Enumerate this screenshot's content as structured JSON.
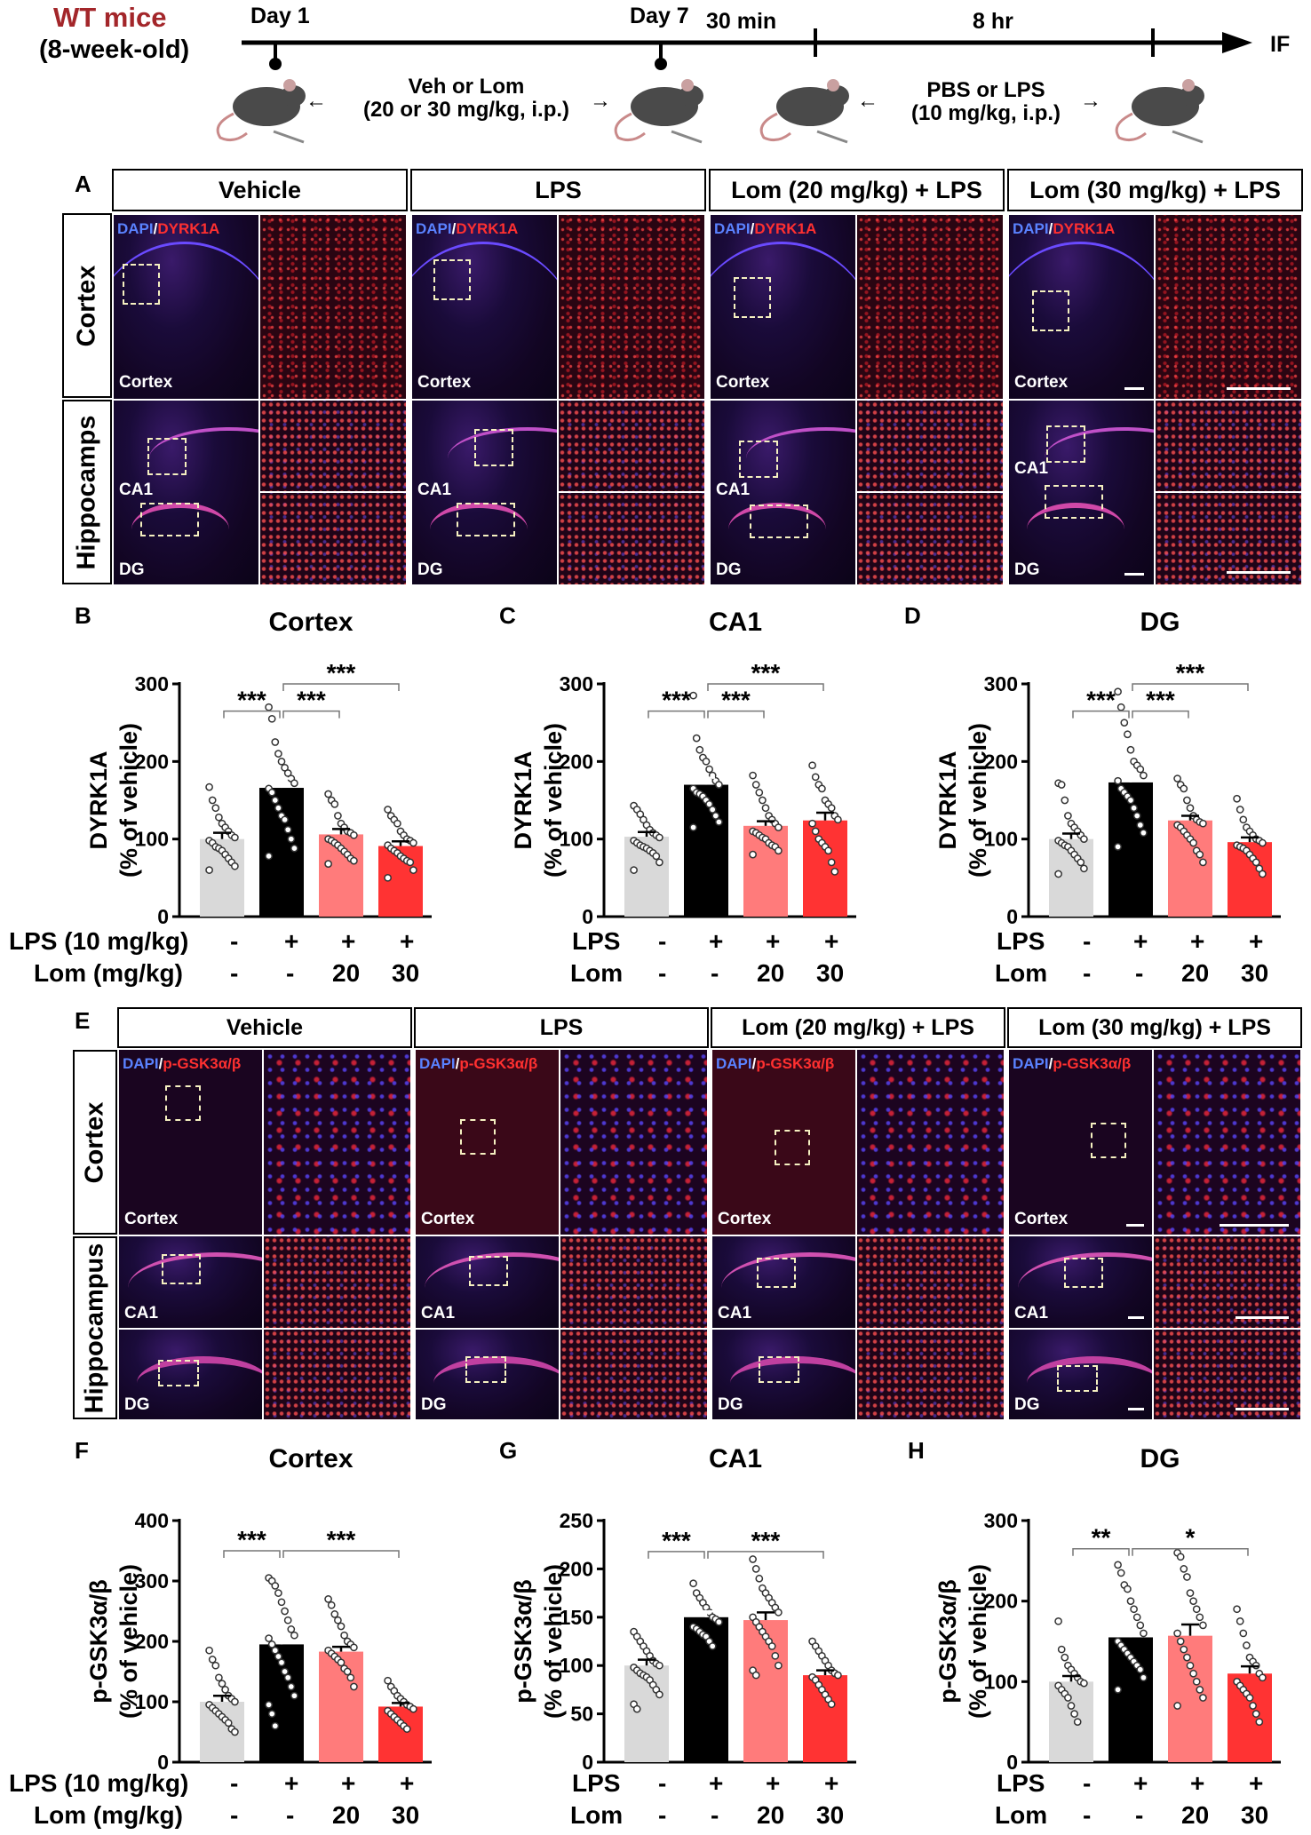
{
  "timeline": {
    "mice_title": "WT mice",
    "mice_sub": "(8-week-old)",
    "day1": "Day 1",
    "day7": "Day 7",
    "t30": "30 min",
    "t8": "8 hr",
    "end": "IF",
    "arrow1_l1": "Veh or Lom",
    "arrow1_l2": "(20 or 30 mg/kg, i.p.)",
    "arrow2_l1": "PBS or LPS",
    "arrow2_l2": "(10 mg/kg, i.p.)"
  },
  "panels": {
    "A": "A",
    "B": "B",
    "C": "C",
    "D": "D",
    "E": "E",
    "F": "F",
    "G": "G",
    "H": "H"
  },
  "groups": [
    "Vehicle",
    "LPS",
    "Lom (20 mg/kg) + LPS",
    "Lom (30 mg/kg) + LPS"
  ],
  "rows_A": {
    "cortex": "Cortex",
    "hippo": "Hippocamps"
  },
  "rows_E": {
    "cortex": "Cortex",
    "hippo": "Hippocampus"
  },
  "region_labels": {
    "cortex": "Cortex",
    "ca1": "CA1",
    "dg": "DG"
  },
  "stain_A": {
    "dapi": "DAPI",
    "sep": "/",
    "marker": "DYRK1A"
  },
  "stain_E": {
    "dapi": "DAPI",
    "sep": "/",
    "marker": "p-GSK3α/β"
  },
  "treatments_full": {
    "lps_label": "LPS (10 mg/kg)",
    "lom_label": "Lom (mg/kg)",
    "lps": [
      "-",
      "+",
      "+",
      "+"
    ],
    "lom": [
      "-",
      "-",
      "20",
      "30"
    ]
  },
  "treatments_short": {
    "lps_label": "LPS",
    "lom_label": "Lom",
    "lps": [
      "-",
      "+",
      "+",
      "+"
    ],
    "lom": [
      "-",
      "-",
      "20",
      "30"
    ]
  },
  "colors": {
    "vehicle": "#d9d9d9",
    "lps": "#000000",
    "lom20": "#ff7b7b",
    "lom30": "#ff3333",
    "title_red": "#a3262a"
  },
  "chart_data": [
    {
      "id": "B",
      "type": "bar",
      "title": "Cortex",
      "ylabel": "DYRK1A",
      "ylabel2": "(% of vehicle)",
      "ylim": [
        0,
        300
      ],
      "yticks": [
        0,
        100,
        200,
        300
      ],
      "categories": [
        "Vehicle",
        "LPS",
        "Lom 20 + LPS",
        "Lom 30 + LPS"
      ],
      "values": [
        100,
        166,
        106,
        91
      ],
      "sem": [
        8,
        12,
        7,
        6
      ],
      "points": [
        [
          167,
          150,
          140,
          128,
          120,
          115,
          110,
          105,
          102,
          98,
          95,
          90,
          88,
          85,
          80,
          75,
          70,
          65,
          60
        ],
        [
          270,
          255,
          225,
          210,
          200,
          192,
          185,
          178,
          172,
          165,
          160,
          150,
          140,
          130,
          125,
          112,
          100,
          88,
          78
        ],
        [
          158,
          150,
          145,
          130,
          120,
          115,
          110,
          108,
          105,
          100,
          98,
          95,
          92,
          88,
          84,
          80,
          75,
          72,
          68
        ],
        [
          138,
          130,
          125,
          120,
          110,
          105,
          100,
          98,
          95,
          92,
          88,
          85,
          82,
          78,
          75,
          72,
          70,
          60,
          50
        ]
      ],
      "sig": [
        {
          "a": 0,
          "b": 1,
          "label": "***",
          "y": 265
        },
        {
          "a": 1,
          "b": 2,
          "label": "***",
          "y": 265
        },
        {
          "a": 1,
          "b": 3,
          "label": "***",
          "y": 300
        }
      ]
    },
    {
      "id": "C",
      "type": "bar",
      "title": "CA1",
      "ylabel": "DYRK1A",
      "ylabel2": "(% of vehicle)",
      "ylim": [
        0,
        300
      ],
      "yticks": [
        0,
        100,
        200,
        300
      ],
      "categories": [
        "Vehicle",
        "LPS",
        "Lom 20 + LPS",
        "Lom 30 + LPS"
      ],
      "values": [
        103,
        170,
        117,
        124
      ],
      "sem": [
        6,
        9,
        6,
        10
      ],
      "points": [
        [
          143,
          138,
          132,
          125,
          118,
          112,
          108,
          105,
          102,
          98,
          95,
          92,
          90,
          88,
          85,
          82,
          78,
          70,
          60
        ],
        [
          285,
          230,
          215,
          205,
          200,
          190,
          182,
          175,
          170,
          165,
          160,
          158,
          155,
          150,
          145,
          138,
          130,
          122,
          115
        ],
        [
          182,
          170,
          160,
          150,
          140,
          130,
          125,
          120,
          115,
          110,
          108,
          105,
          102,
          100,
          95,
          92,
          90,
          85,
          80
        ],
        [
          195,
          180,
          170,
          165,
          150,
          145,
          140,
          130,
          125,
          120,
          110,
          100,
          95,
          90,
          85,
          70,
          58
        ]
      ],
      "sig": [
        {
          "a": 0,
          "b": 1,
          "label": "***",
          "y": 265
        },
        {
          "a": 1,
          "b": 2,
          "label": "***",
          "y": 265
        },
        {
          "a": 1,
          "b": 3,
          "label": "***",
          "y": 300
        }
      ]
    },
    {
      "id": "D",
      "type": "bar",
      "title": "DG",
      "ylabel": "DYRK1A",
      "ylabel2": "(% of vehicle)",
      "ylim": [
        0,
        300
      ],
      "yticks": [
        0,
        100,
        200,
        300
      ],
      "categories": [
        "Vehicle",
        "LPS",
        "Lom 20 + LPS",
        "Lom 30 + LPS"
      ],
      "values": [
        100,
        173,
        124,
        96
      ],
      "sem": [
        7,
        11,
        6,
        6
      ],
      "points": [
        [
          172,
          170,
          150,
          130,
          120,
          115,
          110,
          105,
          100,
          98,
          95,
          92,
          90,
          85,
          80,
          75,
          70,
          62,
          55
        ],
        [
          290,
          270,
          250,
          235,
          215,
          200,
          195,
          190,
          182,
          175,
          165,
          160,
          155,
          150,
          140,
          130,
          118,
          108,
          90
        ],
        [
          178,
          170,
          165,
          150,
          140,
          130,
          125,
          122,
          120,
          118,
          115,
          110,
          105,
          100,
          95,
          85,
          80,
          70
        ],
        [
          152,
          138,
          125,
          115,
          110,
          105,
          100,
          98,
          95,
          92,
          90,
          88,
          85,
          80,
          75,
          70,
          62,
          55
        ]
      ],
      "sig": [
        {
          "a": 0,
          "b": 1,
          "label": "***",
          "y": 265
        },
        {
          "a": 1,
          "b": 2,
          "label": "***",
          "y": 265
        },
        {
          "a": 1,
          "b": 3,
          "label": "***",
          "y": 300
        }
      ]
    },
    {
      "id": "F",
      "type": "bar",
      "title": "Cortex",
      "ylabel": "p-GSK3α/β",
      "ylabel2": "(% of vehicle)",
      "ylim": [
        0,
        400
      ],
      "yticks": [
        0,
        100,
        200,
        300,
        400
      ],
      "categories": [
        "Vehicle",
        "LPS",
        "Lom 20 + LPS",
        "Lom 30 + LPS"
      ],
      "values": [
        100,
        195,
        183,
        92
      ],
      "sem": [
        10,
        14,
        8,
        6
      ],
      "points": [
        [
          185,
          170,
          160,
          140,
          130,
          120,
          110,
          105,
          100,
          95,
          90,
          85,
          80,
          75,
          70,
          65,
          55,
          50
        ],
        [
          305,
          300,
          292,
          280,
          265,
          250,
          235,
          220,
          210,
          205,
          195,
          185,
          175,
          165,
          150,
          140,
          125,
          110,
          95,
          80,
          60
        ],
        [
          270,
          260,
          245,
          235,
          225,
          210,
          200,
          195,
          190,
          185,
          180,
          175,
          170,
          165,
          155,
          150,
          140,
          125
        ],
        [
          135,
          125,
          118,
          110,
          105,
          100,
          95,
          92,
          88,
          85,
          80,
          75,
          70,
          65,
          60,
          55
        ]
      ],
      "sig": [
        {
          "a": 0,
          "b": 1,
          "label": "***",
          "y": 350
        },
        {
          "a": 1,
          "b": 3,
          "label": "***",
          "y": 350
        }
      ]
    },
    {
      "id": "G",
      "type": "bar",
      "title": "CA1",
      "ylabel": "p-GSK3α/β",
      "ylabel2": "(% of vehicle)",
      "ylim": [
        0,
        250
      ],
      "yticks": [
        0,
        50,
        100,
        150,
        200,
        250
      ],
      "categories": [
        "Vehicle",
        "LPS",
        "Lom 20 + LPS",
        "Lom 30 + LPS"
      ],
      "values": [
        100,
        150,
        147,
        90
      ],
      "sem": [
        6,
        6,
        8,
        5
      ],
      "points": [
        [
          135,
          130,
          125,
          120,
          115,
          110,
          105,
          102,
          100,
          98,
          95,
          92,
          90,
          88,
          85,
          80,
          75,
          70,
          60,
          55
        ],
        [
          185,
          175,
          170,
          165,
          160,
          155,
          150,
          148,
          145,
          140,
          138,
          135,
          132,
          130,
          125,
          120
        ],
        [
          210,
          200,
          190,
          180,
          175,
          170,
          165,
          160,
          155,
          150,
          145,
          140,
          135,
          130,
          125,
          120,
          110,
          100,
          95,
          90
        ],
        [
          125,
          120,
          115,
          110,
          105,
          100,
          95,
          92,
          90,
          88,
          85,
          80,
          75,
          70,
          65,
          60
        ]
      ],
      "sig": [
        {
          "a": 0,
          "b": 1,
          "label": "***",
          "y": 218
        },
        {
          "a": 1,
          "b": 3,
          "label": "***",
          "y": 218
        }
      ]
    },
    {
      "id": "H",
      "type": "bar",
      "title": "DG",
      "ylabel": "p-GSK3α/β",
      "ylabel2": "(% of vehicle)",
      "ylim": [
        0,
        300
      ],
      "yticks": [
        0,
        100,
        200,
        300
      ],
      "categories": [
        "Vehicle",
        "LPS",
        "Lom 20 + LPS",
        "Lom 30 + LPS"
      ],
      "values": [
        100,
        155,
        157,
        110
      ],
      "sem": [
        7,
        9,
        14,
        9
      ],
      "points": [
        [
          175,
          140,
          130,
          120,
          115,
          110,
          105,
          100,
          98,
          95,
          90,
          85,
          80,
          70,
          60,
          50
        ],
        [
          245,
          235,
          220,
          215,
          200,
          190,
          180,
          170,
          160,
          150,
          145,
          140,
          135,
          130,
          125,
          120,
          115,
          105,
          90
        ],
        [
          260,
          255,
          240,
          230,
          210,
          200,
          190,
          180,
          170,
          160,
          150,
          140,
          130,
          120,
          110,
          100,
          90,
          80,
          70
        ],
        [
          190,
          175,
          160,
          145,
          130,
          125,
          120,
          110,
          105,
          100,
          95,
          90,
          85,
          80,
          70,
          60,
          50
        ]
      ],
      "sig": [
        {
          "a": 0,
          "b": 1,
          "label": "**",
          "y": 265
        },
        {
          "a": 1,
          "b": 3,
          "label": "*",
          "y": 265
        }
      ]
    }
  ]
}
